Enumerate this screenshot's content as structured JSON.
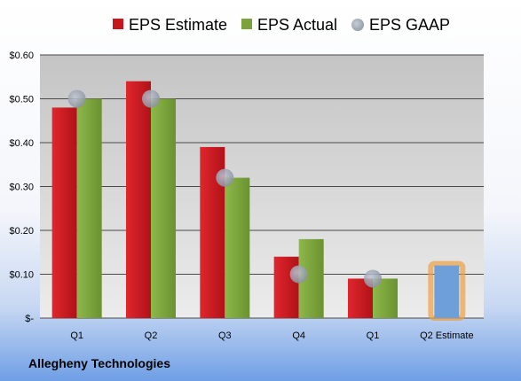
{
  "chart_data": {
    "type": "bar",
    "title": "",
    "xlabel": "",
    "ylabel": "",
    "categories": [
      "Q1",
      "Q2",
      "Q3",
      "Q4",
      "Q1",
      "Q2 Estimate"
    ],
    "series": [
      {
        "name": "EPS Estimate",
        "values": [
          0.48,
          0.54,
          0.39,
          0.14,
          0.09,
          null
        ]
      },
      {
        "name": "EPS Actual",
        "values": [
          0.5,
          0.5,
          0.32,
          0.18,
          0.09,
          null
        ]
      },
      {
        "name": "EPS GAAP",
        "values": [
          0.5,
          0.5,
          0.32,
          0.1,
          0.09,
          null
        ]
      }
    ],
    "upcoming_estimate": {
      "category": "Q2 Estimate",
      "value": 0.12
    },
    "ylim": [
      0,
      0.6
    ],
    "yticks": [
      0,
      0.1,
      0.2,
      0.3,
      0.4,
      0.5,
      0.6
    ],
    "ytick_labels": [
      "$-",
      "$0.10",
      "$0.20",
      "$0.30",
      "$0.40",
      "$0.50",
      "$0.60"
    ],
    "legend_position": "top",
    "grid": true,
    "colors": {
      "estimate": "#c8161d",
      "actual": "#7aa33b",
      "gaap": "#a0a8b8",
      "upcoming_fill": "#6f9fd8",
      "upcoming_border": "#f0a040"
    }
  },
  "company": "Allegheny Technologies"
}
